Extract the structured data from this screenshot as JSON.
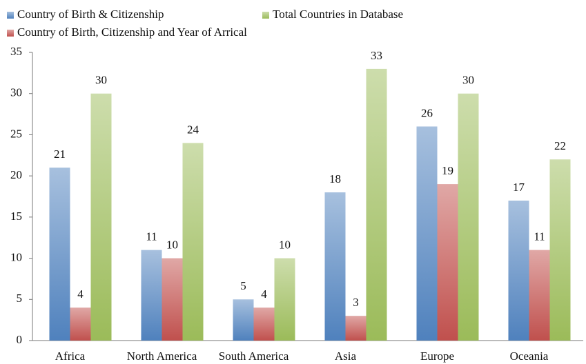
{
  "chart_data": {
    "type": "bar",
    "categories": [
      "Africa",
      "North America",
      "South America",
      "Asia",
      "Europe",
      "Oceania"
    ],
    "series": [
      {
        "name": "Country of Birth & Citizenship",
        "color": "#4f81bd",
        "values": [
          21,
          11,
          5,
          18,
          26,
          17
        ]
      },
      {
        "name": "Country of Birth, Citizenship and Year of Arrical",
        "color": "#c0504d",
        "values": [
          4,
          10,
          4,
          3,
          19,
          11
        ]
      },
      {
        "name": "Total Countries in Database",
        "color": "#9bbb59",
        "values": [
          30,
          24,
          10,
          33,
          30,
          22
        ]
      }
    ],
    "ylim": [
      0,
      35
    ],
    "yticks": [
      0,
      5,
      10,
      15,
      20,
      25,
      30,
      35
    ],
    "grid": false
  }
}
